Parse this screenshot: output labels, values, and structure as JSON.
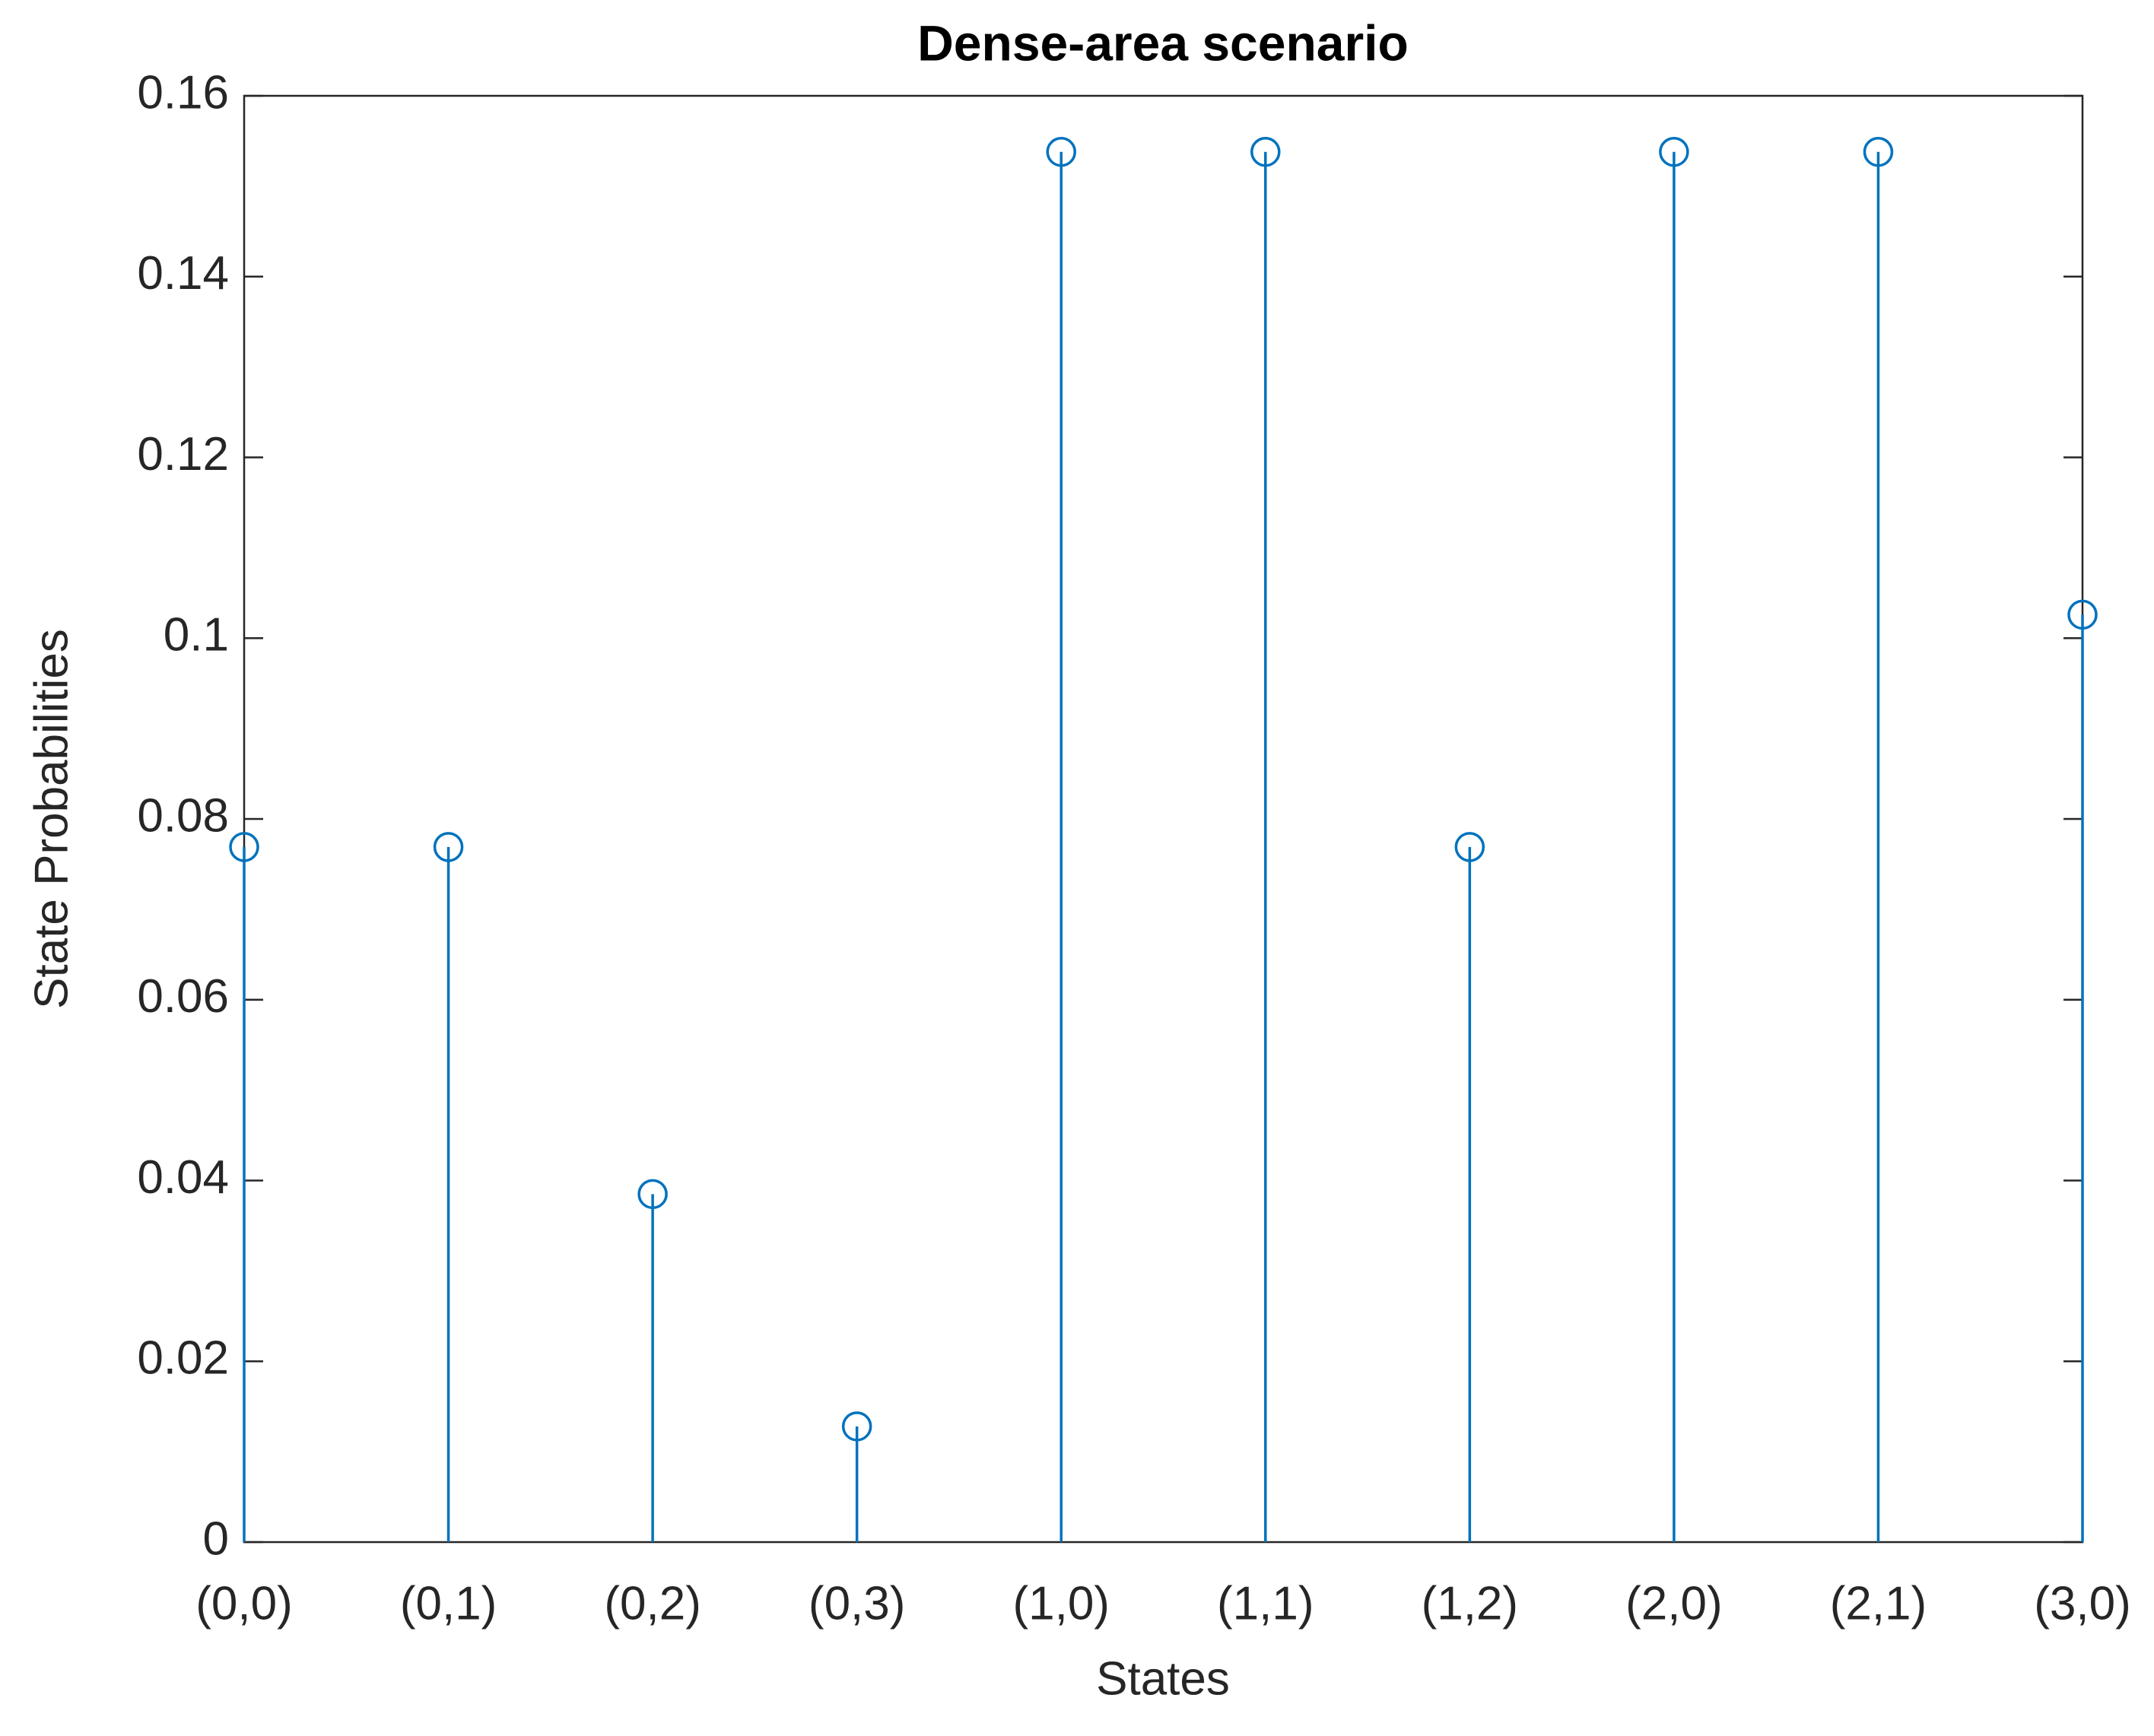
{
  "chart_data": {
    "type": "stem",
    "title": "Dense-area scenario",
    "x_label": "States",
    "y_label": "State Probabilities",
    "categories": [
      "(0,0)",
      "(0,1)",
      "(0,2)",
      "(0,3)",
      "(1,0)",
      "(1,1)",
      "(1,2)",
      "(2,0)",
      "(2,1)",
      "(3,0)"
    ],
    "values": [
      0.0769,
      0.0769,
      0.0385,
      0.0128,
      0.1538,
      0.1538,
      0.0769,
      0.1538,
      0.1538,
      0.1026
    ],
    "color": "#0072bd",
    "ylim": [
      0,
      0.16
    ],
    "yticks": [
      0,
      0.02,
      0.04,
      0.06,
      0.08,
      0.1,
      0.12,
      0.14,
      0.16
    ],
    "grid": false
  }
}
